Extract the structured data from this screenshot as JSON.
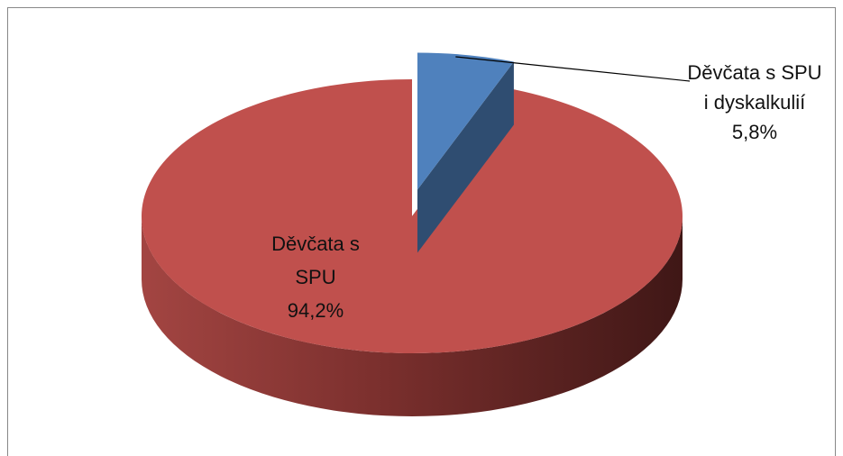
{
  "chart_data": {
    "type": "pie3d",
    "categories": [
      "Děvčata s SPU i dyskalkulií",
      "Děvčata s SPU"
    ],
    "values": [
      5.8,
      94.2
    ],
    "value_labels": [
      "5,8%",
      "94,2%"
    ],
    "colors": [
      "#4f81bd",
      "#c0504d"
    ],
    "explode": [
      true,
      false
    ]
  }
}
